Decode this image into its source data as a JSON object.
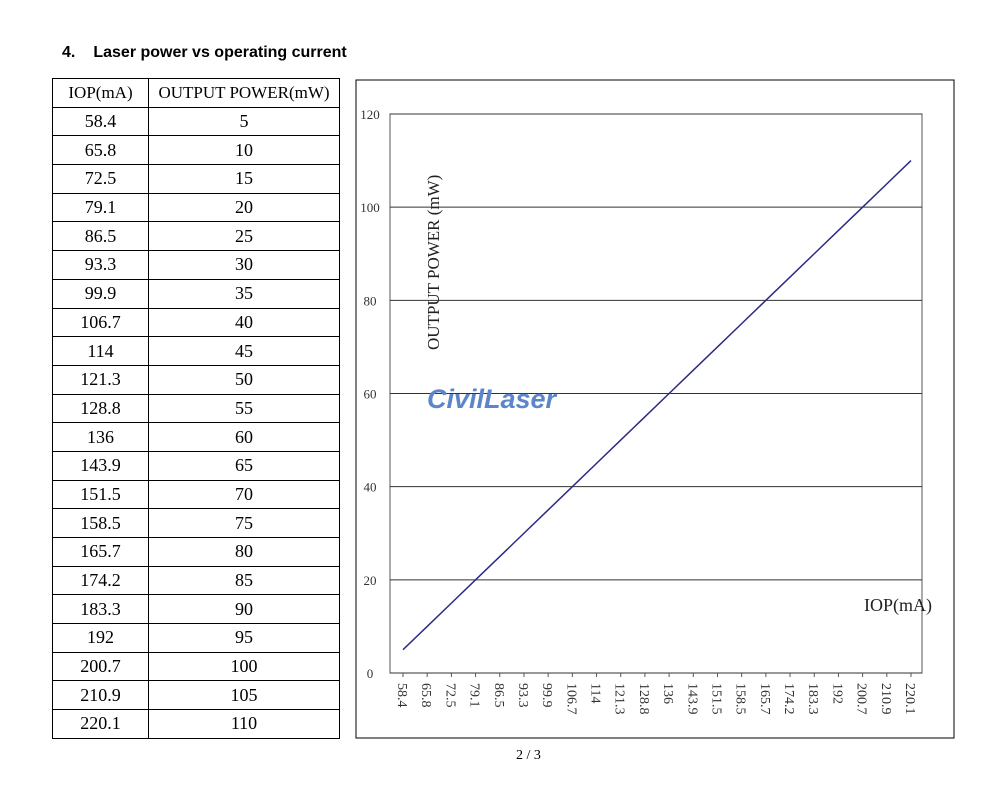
{
  "heading": {
    "number": "4.",
    "text": "Laser power vs operating current"
  },
  "table": {
    "headers": [
      "IOP(mA)",
      "OUTPUT POWER(mW)"
    ],
    "rows": [
      [
        58.4,
        5
      ],
      [
        65.8,
        10
      ],
      [
        72.5,
        15
      ],
      [
        79.1,
        20
      ],
      [
        86.5,
        25
      ],
      [
        93.3,
        30
      ],
      [
        99.9,
        35
      ],
      [
        106.7,
        40
      ],
      [
        114,
        45
      ],
      [
        121.3,
        50
      ],
      [
        128.8,
        55
      ],
      [
        136,
        60
      ],
      [
        143.9,
        65
      ],
      [
        151.5,
        70
      ],
      [
        158.5,
        75
      ],
      [
        165.7,
        80
      ],
      [
        174.2,
        85
      ],
      [
        183.3,
        90
      ],
      [
        192,
        95
      ],
      [
        200.7,
        100
      ],
      [
        210.9,
        105
      ],
      [
        220.1,
        110
      ]
    ]
  },
  "chart_data": {
    "type": "line",
    "categories": [
      58.4,
      65.8,
      72.5,
      79.1,
      86.5,
      93.3,
      99.9,
      106.7,
      114,
      121.3,
      128.8,
      136,
      143.9,
      151.5,
      158.5,
      165.7,
      174.2,
      183.3,
      192,
      200.7,
      210.9,
      220.1
    ],
    "values": [
      5,
      10,
      15,
      20,
      25,
      30,
      35,
      40,
      45,
      50,
      55,
      60,
      65,
      70,
      75,
      80,
      85,
      90,
      95,
      100,
      105,
      110
    ],
    "color": "#2b2b85",
    "ylim": [
      0,
      120
    ],
    "yticks": [
      0,
      20,
      40,
      60,
      80,
      100,
      120
    ],
    "grid": true,
    "y_label": "OUTPUT POWER (mW)",
    "x_label": "IOP(mA)",
    "watermark": "CivilLaser"
  },
  "footer": "2 / 3"
}
